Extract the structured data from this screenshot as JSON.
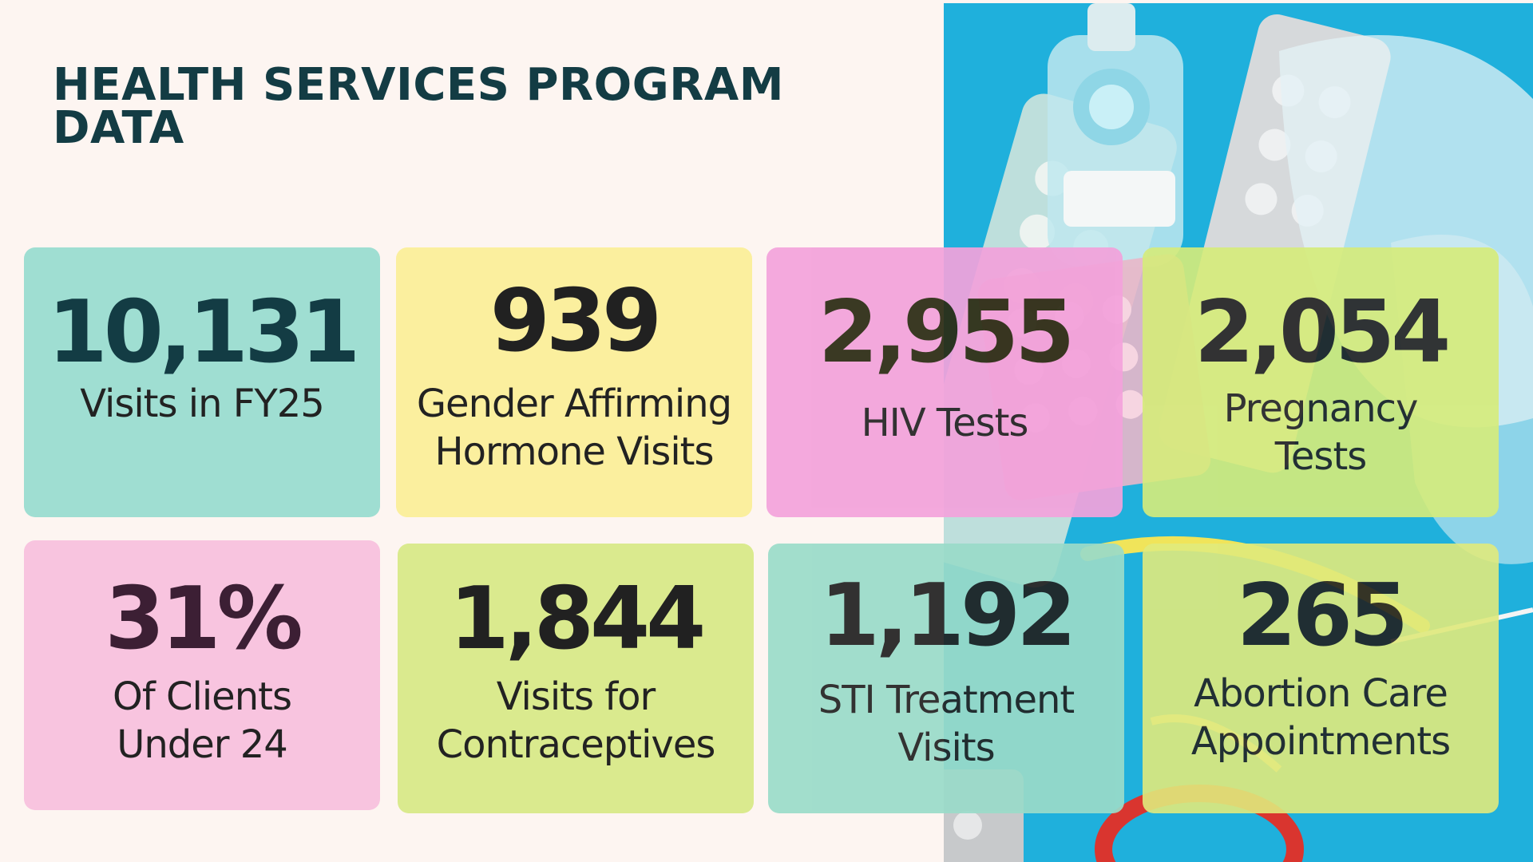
{
  "title": "HEALTH SERVICES PROGRAM DATA",
  "colors": {
    "background": "#fdf5f1",
    "title": "#133c44",
    "photo_backdrop": "#1fb0dc"
  },
  "stats": [
    {
      "value": "10,131",
      "label_lines": [
        "Visits in FY25"
      ],
      "color": "#9fded2",
      "value_color": "#133c44"
    },
    {
      "value": "939",
      "label_lines": [
        "Gender Affirming",
        "Hormone Visits"
      ],
      "color": "#fbef9e",
      "value_color": "#212121"
    },
    {
      "value": "2,955",
      "label_lines": [
        "HIV Tests"
      ],
      "color": "#f3a2db",
      "value_color": "#2a2a12"
    },
    {
      "value": "2,054",
      "label_lines": [
        "Pregnancy",
        "Tests"
      ],
      "color": "#d6ec7a",
      "value_color": "#212121"
    },
    {
      "value": "31%",
      "label_lines": [
        "Of Clients",
        "Under 24"
      ],
      "color": "#f8c4df",
      "value_color": "#3c1f34"
    },
    {
      "value": "1,844",
      "label_lines": [
        "Visits for",
        "Contraceptives"
      ],
      "color": "#daea8e",
      "value_color": "#212121"
    },
    {
      "value": "1,192",
      "label_lines": [
        "STI Treatment",
        "Visits"
      ],
      "color": "#9adbc9",
      "value_color": "#212121"
    },
    {
      "value": "265",
      "label_lines": [
        "Abortion Care",
        "Appointments"
      ],
      "color": "#e0ea7c",
      "value_color": "#212121"
    }
  ]
}
